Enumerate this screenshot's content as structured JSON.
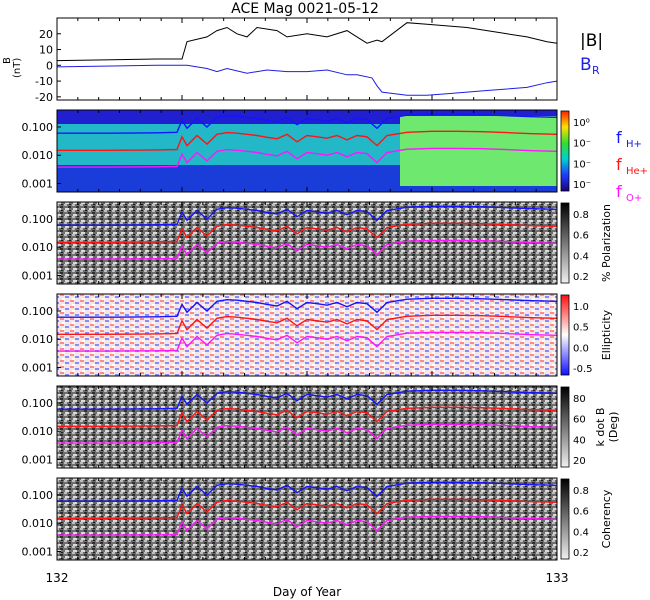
{
  "chart_data": {
    "title": "ACE Mag 0021-05-12",
    "xlabel": "Day of Year",
    "x_ticks": [
      "132",
      "133"
    ],
    "xlim": [
      132,
      133
    ],
    "panels": [
      {
        "id": "bfield",
        "type": "line",
        "ylabel_top": "B",
        "ylabel_unit": "(nT)",
        "ylim": [
          -22,
          30
        ],
        "y_ticks": [
          20,
          10,
          0,
          -10,
          -20
        ],
        "legend": [
          "|B|",
          "B"
        ],
        "legend_sub": [
          "",
          "R"
        ],
        "series": [
          {
            "name": "|B|",
            "color": "#000000",
            "x": [
              132.0,
              132.2,
              132.25,
              132.26,
              132.3,
              132.32,
              132.34,
              132.36,
              132.38,
              132.4,
              132.44,
              132.46,
              132.5,
              132.54,
              132.58,
              132.6,
              132.62,
              132.64,
              132.65,
              132.7,
              132.74,
              132.78,
              132.82,
              132.86,
              132.9,
              132.94,
              132.98,
              133.0
            ],
            "y": [
              3,
              4,
              4,
              15,
              18,
              22,
              24,
              20,
              18,
              24,
              22,
              18,
              20,
              18,
              22,
              18,
              14,
              16,
              15,
              27,
              26,
              25,
              24,
              22,
              20,
              18,
              15,
              14
            ]
          },
          {
            "name": "B_R",
            "color": "#1e1ee6",
            "x": [
              132.0,
              132.2,
              132.25,
              132.26,
              132.3,
              132.32,
              132.34,
              132.38,
              132.42,
              132.46,
              132.5,
              132.54,
              132.58,
              132.6,
              132.63,
              132.64,
              132.65,
              132.7,
              132.74,
              132.78,
              132.82,
              132.86,
              132.9,
              132.94,
              132.98,
              133.0
            ],
            "y": [
              -1,
              0,
              0,
              0,
              -2,
              -4,
              -2,
              -5,
              -3,
              -4,
              -4,
              -3,
              -6,
              -6,
              -8,
              -13,
              -17,
              -19,
              -19,
              -18,
              -17,
              -16,
              -15,
              -14,
              -11,
              -10
            ]
          }
        ]
      },
      {
        "id": "power",
        "ytick_labels": [
          "0.100",
          "0.010",
          "0.001"
        ],
        "cbar_label": "",
        "cbar_ticks": [
          "10⁰",
          "10⁻",
          "10⁻",
          "10⁻"
        ],
        "legend": [
          "f",
          "f",
          "f"
        ],
        "legend_sub": [
          "H+",
          "He+",
          "O+"
        ]
      },
      {
        "id": "polarization",
        "ytick_labels": [
          "0.100",
          "0.010",
          "0.001"
        ],
        "cbar_label": "% Polarization",
        "cbar_ticks": [
          "0.8",
          "0.6",
          "0.4",
          "0.2"
        ]
      },
      {
        "id": "ellipticity",
        "ytick_labels": [
          "0.100",
          "0.010",
          "0.001"
        ],
        "cbar_label": "Ellipticity",
        "cbar_ticks": [
          "1.0",
          "0.5",
          "0.0",
          "-0.5"
        ]
      },
      {
        "id": "kdotb",
        "ytick_labels": [
          "0.100",
          "0.010",
          "0.001"
        ],
        "cbar_label": "k dot B",
        "cbar_label2": "(Deg)",
        "cbar_ticks": [
          "80",
          "60",
          "40",
          "20"
        ]
      },
      {
        "id": "coherency",
        "ytick_labels": [
          "0.100",
          "0.010",
          "0.001"
        ],
        "cbar_label": "Coherency",
        "cbar_ticks": [
          "0.8",
          "0.6",
          "0.4",
          "0.2"
        ]
      }
    ],
    "gyrofreq": {
      "ylim_log": [
        -3.3,
        -0.4
      ],
      "x": [
        132.0,
        132.1,
        132.2,
        132.24,
        132.25,
        132.26,
        132.28,
        132.3,
        132.32,
        132.34,
        132.36,
        132.38,
        132.4,
        132.42,
        132.44,
        132.46,
        132.48,
        132.5,
        132.52,
        132.54,
        132.56,
        132.58,
        132.6,
        132.62,
        132.64,
        132.66,
        132.7,
        132.75,
        132.8,
        132.85,
        132.9,
        132.95,
        133.0
      ],
      "series": [
        {
          "name": "H+",
          "color": "#1414ff",
          "y": [
            0.06,
            0.06,
            0.062,
            0.065,
            0.17,
            0.09,
            0.2,
            0.1,
            0.22,
            0.25,
            0.24,
            0.22,
            0.2,
            0.17,
            0.15,
            0.22,
            0.12,
            0.2,
            0.18,
            0.16,
            0.2,
            0.14,
            0.2,
            0.18,
            0.09,
            0.2,
            0.26,
            0.28,
            0.28,
            0.27,
            0.25,
            0.23,
            0.22
          ]
        },
        {
          "name": "He+",
          "color": "#ff1414",
          "y": [
            0.015,
            0.015,
            0.0155,
            0.016,
            0.045,
            0.022,
            0.05,
            0.025,
            0.055,
            0.063,
            0.06,
            0.055,
            0.05,
            0.043,
            0.038,
            0.055,
            0.03,
            0.05,
            0.045,
            0.04,
            0.05,
            0.035,
            0.05,
            0.045,
            0.022,
            0.05,
            0.065,
            0.07,
            0.07,
            0.068,
            0.063,
            0.058,
            0.055
          ]
        },
        {
          "name": "O+",
          "color": "#ff14ff",
          "y": [
            0.0038,
            0.0038,
            0.0039,
            0.004,
            0.011,
            0.0055,
            0.0125,
            0.0063,
            0.0138,
            0.0158,
            0.015,
            0.0138,
            0.0125,
            0.0108,
            0.0095,
            0.0138,
            0.0075,
            0.0125,
            0.0113,
            0.01,
            0.0125,
            0.0088,
            0.0125,
            0.0113,
            0.0055,
            0.0125,
            0.0163,
            0.0175,
            0.0175,
            0.017,
            0.0158,
            0.0145,
            0.0138
          ]
        }
      ]
    }
  }
}
